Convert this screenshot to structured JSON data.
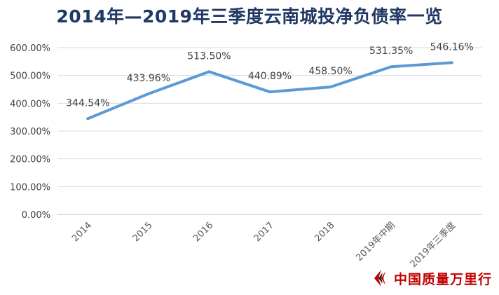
{
  "chart_data": {
    "type": "line",
    "title": "2014年—2019年三季度云南城投净负债率一览",
    "categories": [
      "2014",
      "2015",
      "2016",
      "2017",
      "2018",
      "2019年中期",
      "2019年三季度"
    ],
    "series": [
      {
        "values": [
          344.54,
          433.96,
          513.5,
          440.89,
          458.5,
          531.35,
          546.16
        ],
        "labels": [
          "344.54%",
          "433.96%",
          "513.50%",
          "440.89%",
          "458.50%",
          "531.35%",
          "546.16%"
        ],
        "color": "#5b9bd5"
      }
    ],
    "ylim": [
      0,
      600
    ],
    "yticks": [
      0,
      100,
      200,
      300,
      400,
      500,
      600
    ],
    "ytick_labels": [
      "0.00%",
      "100.00%",
      "200.00%",
      "300.00%",
      "400.00%",
      "500.00%",
      "600.00%"
    ],
    "grid": true,
    "legend": "none"
  },
  "watermark": {
    "text": "中国质量万里行",
    "logo": "red-brand-icon"
  }
}
